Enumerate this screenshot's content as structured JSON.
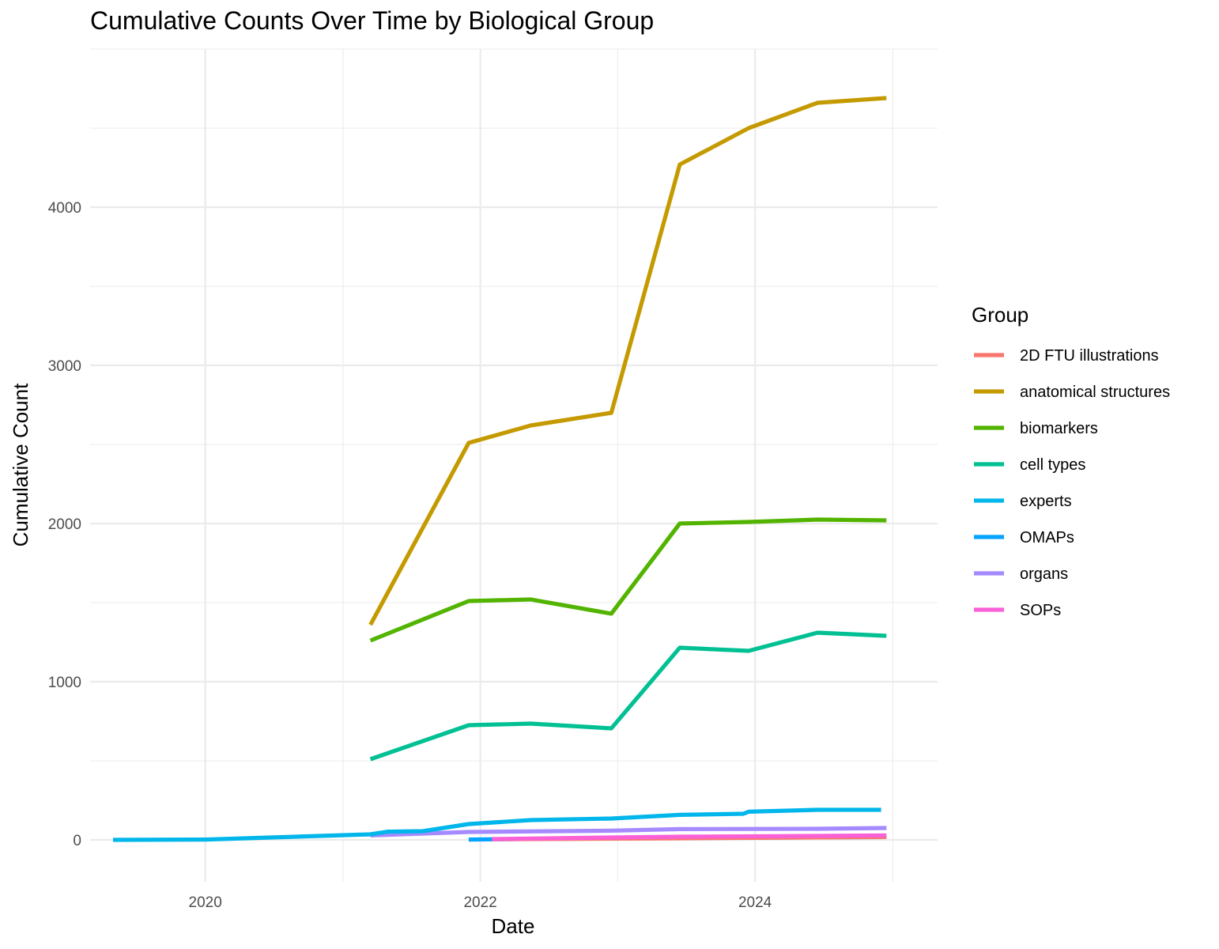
{
  "chart_data": {
    "type": "line",
    "title": "Cumulative Counts Over Time by Biological Group",
    "xlabel": "Date",
    "ylabel": "Cumulative Count",
    "x_ticks": [
      "2020",
      "2022",
      "2024"
    ],
    "y_ticks": [
      "0",
      "1000",
      "2000",
      "3000",
      "4000"
    ],
    "xlim": [
      "2019-03-01",
      "2025-04-30"
    ],
    "ylim": [
      -265,
      5000
    ],
    "grid": true,
    "legend": {
      "title": "Group",
      "position": "right"
    },
    "series": [
      {
        "name": "2D FTU illustrations",
        "color": "#F8766D",
        "points": [
          [
            "2022-02-01",
            4
          ],
          [
            "2023-06-15",
            10
          ],
          [
            "2024-12-15",
            18
          ]
        ]
      },
      {
        "name": "anatomical structures",
        "color": "#C49A00",
        "points": [
          [
            "2021-03-15",
            1360
          ],
          [
            "2021-12-01",
            2510
          ],
          [
            "2022-05-15",
            2620
          ],
          [
            "2022-12-15",
            2700
          ],
          [
            "2023-06-15",
            4270
          ],
          [
            "2023-12-15",
            4500
          ],
          [
            "2024-06-15",
            4660
          ],
          [
            "2024-12-15",
            4690
          ]
        ]
      },
      {
        "name": "biomarkers",
        "color": "#53B400",
        "points": [
          [
            "2021-03-15",
            1260
          ],
          [
            "2021-12-01",
            1510
          ],
          [
            "2022-05-15",
            1520
          ],
          [
            "2022-12-15",
            1430
          ],
          [
            "2023-06-15",
            2000
          ],
          [
            "2023-12-15",
            2010
          ],
          [
            "2024-06-15",
            2025
          ],
          [
            "2024-12-15",
            2020
          ]
        ]
      },
      {
        "name": "cell types",
        "color": "#00C094",
        "points": [
          [
            "2021-03-15",
            510
          ],
          [
            "2021-12-01",
            725
          ],
          [
            "2022-05-15",
            735
          ],
          [
            "2022-12-15",
            705
          ],
          [
            "2023-06-15",
            1215
          ],
          [
            "2023-12-15",
            1195
          ],
          [
            "2024-06-15",
            1310
          ],
          [
            "2024-12-15",
            1290
          ]
        ]
      },
      {
        "name": "experts",
        "color": "#00B6EB",
        "points": [
          [
            "2019-05-01",
            0
          ],
          [
            "2020-01-01",
            2
          ],
          [
            "2021-03-15",
            35
          ],
          [
            "2021-05-01",
            52
          ],
          [
            "2021-08-01",
            55
          ],
          [
            "2021-12-01",
            100
          ],
          [
            "2022-05-15",
            125
          ],
          [
            "2022-12-15",
            135
          ],
          [
            "2023-06-15",
            158
          ],
          [
            "2023-12-01",
            165
          ],
          [
            "2023-12-15",
            178
          ],
          [
            "2024-06-15",
            190
          ],
          [
            "2024-12-01",
            190
          ]
        ]
      },
      {
        "name": "OMAPs",
        "color": "#06A4FF",
        "points": [
          [
            "2021-12-01",
            2
          ],
          [
            "2022-05-15",
            6
          ],
          [
            "2023-06-15",
            12
          ],
          [
            "2024-12-15",
            18
          ]
        ]
      },
      {
        "name": "organs",
        "color": "#A58AFF",
        "points": [
          [
            "2021-03-15",
            28
          ],
          [
            "2021-12-01",
            50
          ],
          [
            "2022-12-15",
            58
          ],
          [
            "2023-06-15",
            68
          ],
          [
            "2024-06-15",
            70
          ],
          [
            "2024-12-15",
            75
          ]
        ]
      },
      {
        "name": "SOPs",
        "color": "#FB61D7",
        "points": [
          [
            "2022-02-01",
            5
          ],
          [
            "2022-12-15",
            15
          ],
          [
            "2023-06-15",
            20
          ],
          [
            "2024-06-15",
            25
          ],
          [
            "2024-12-15",
            28
          ]
        ]
      }
    ]
  }
}
